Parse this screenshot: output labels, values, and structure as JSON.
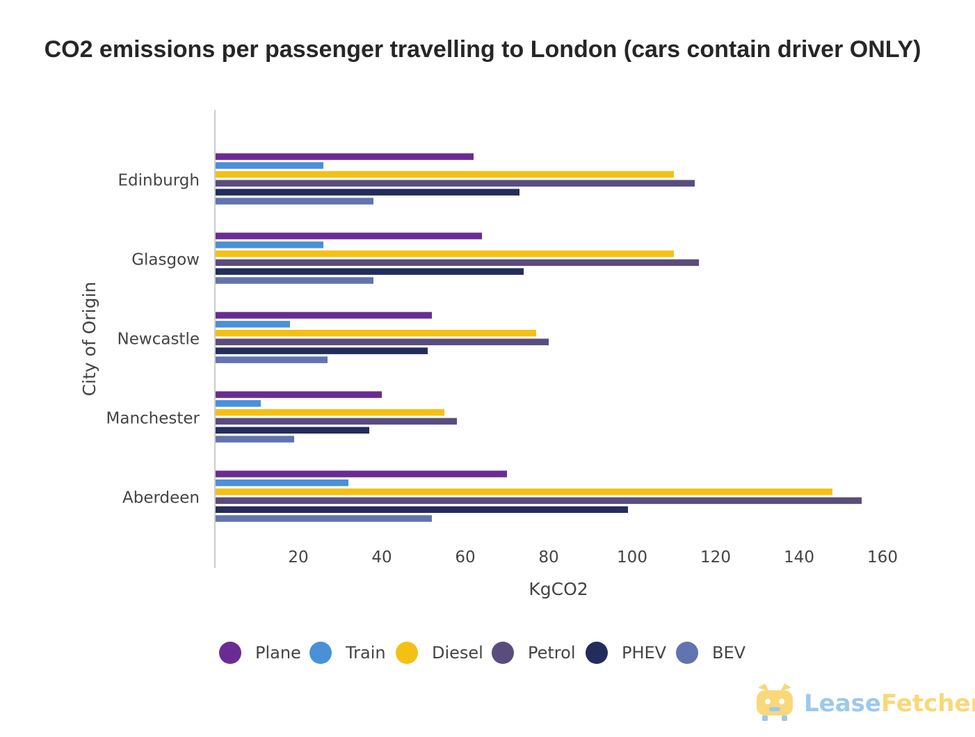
{
  "chart_data": {
    "type": "bar",
    "orientation": "horizontal",
    "title": "CO2 emissions per passenger travelling to London (cars contain driver ONLY)",
    "xlabel": "KgCO2",
    "ylabel": "City of Origin",
    "categories": [
      "Edinburgh",
      "Glasgow",
      "Newcastle",
      "Manchester",
      "Aberdeen"
    ],
    "xlim": [
      0,
      162
    ],
    "xticks": [
      20,
      40,
      60,
      80,
      100,
      120,
      140,
      160
    ],
    "grid": false,
    "legend_position": "bottom",
    "series": [
      {
        "name": "Plane",
        "color": "#6a2c94",
        "values": [
          62,
          64,
          52,
          40,
          70
        ]
      },
      {
        "name": "Train",
        "color": "#4a90d9",
        "values": [
          26,
          26,
          18,
          11,
          32
        ]
      },
      {
        "name": "Diesel",
        "color": "#f5c014",
        "values": [
          110,
          110,
          77,
          55,
          148
        ]
      },
      {
        "name": "Petrol",
        "color": "#5a4d7e",
        "values": [
          115,
          116,
          80,
          58,
          155
        ]
      },
      {
        "name": "PHEV",
        "color": "#232d5c",
        "values": [
          73,
          74,
          51,
          37,
          99
        ]
      },
      {
        "name": "BEV",
        "color": "#6174b0",
        "values": [
          38,
          38,
          27,
          19,
          52
        ]
      }
    ]
  },
  "logo": {
    "icon": "dog-car-icon",
    "part1": "Lease",
    "part2": "Fetcher",
    "color1": "#9cc9ee",
    "color2": "#f8d879"
  }
}
